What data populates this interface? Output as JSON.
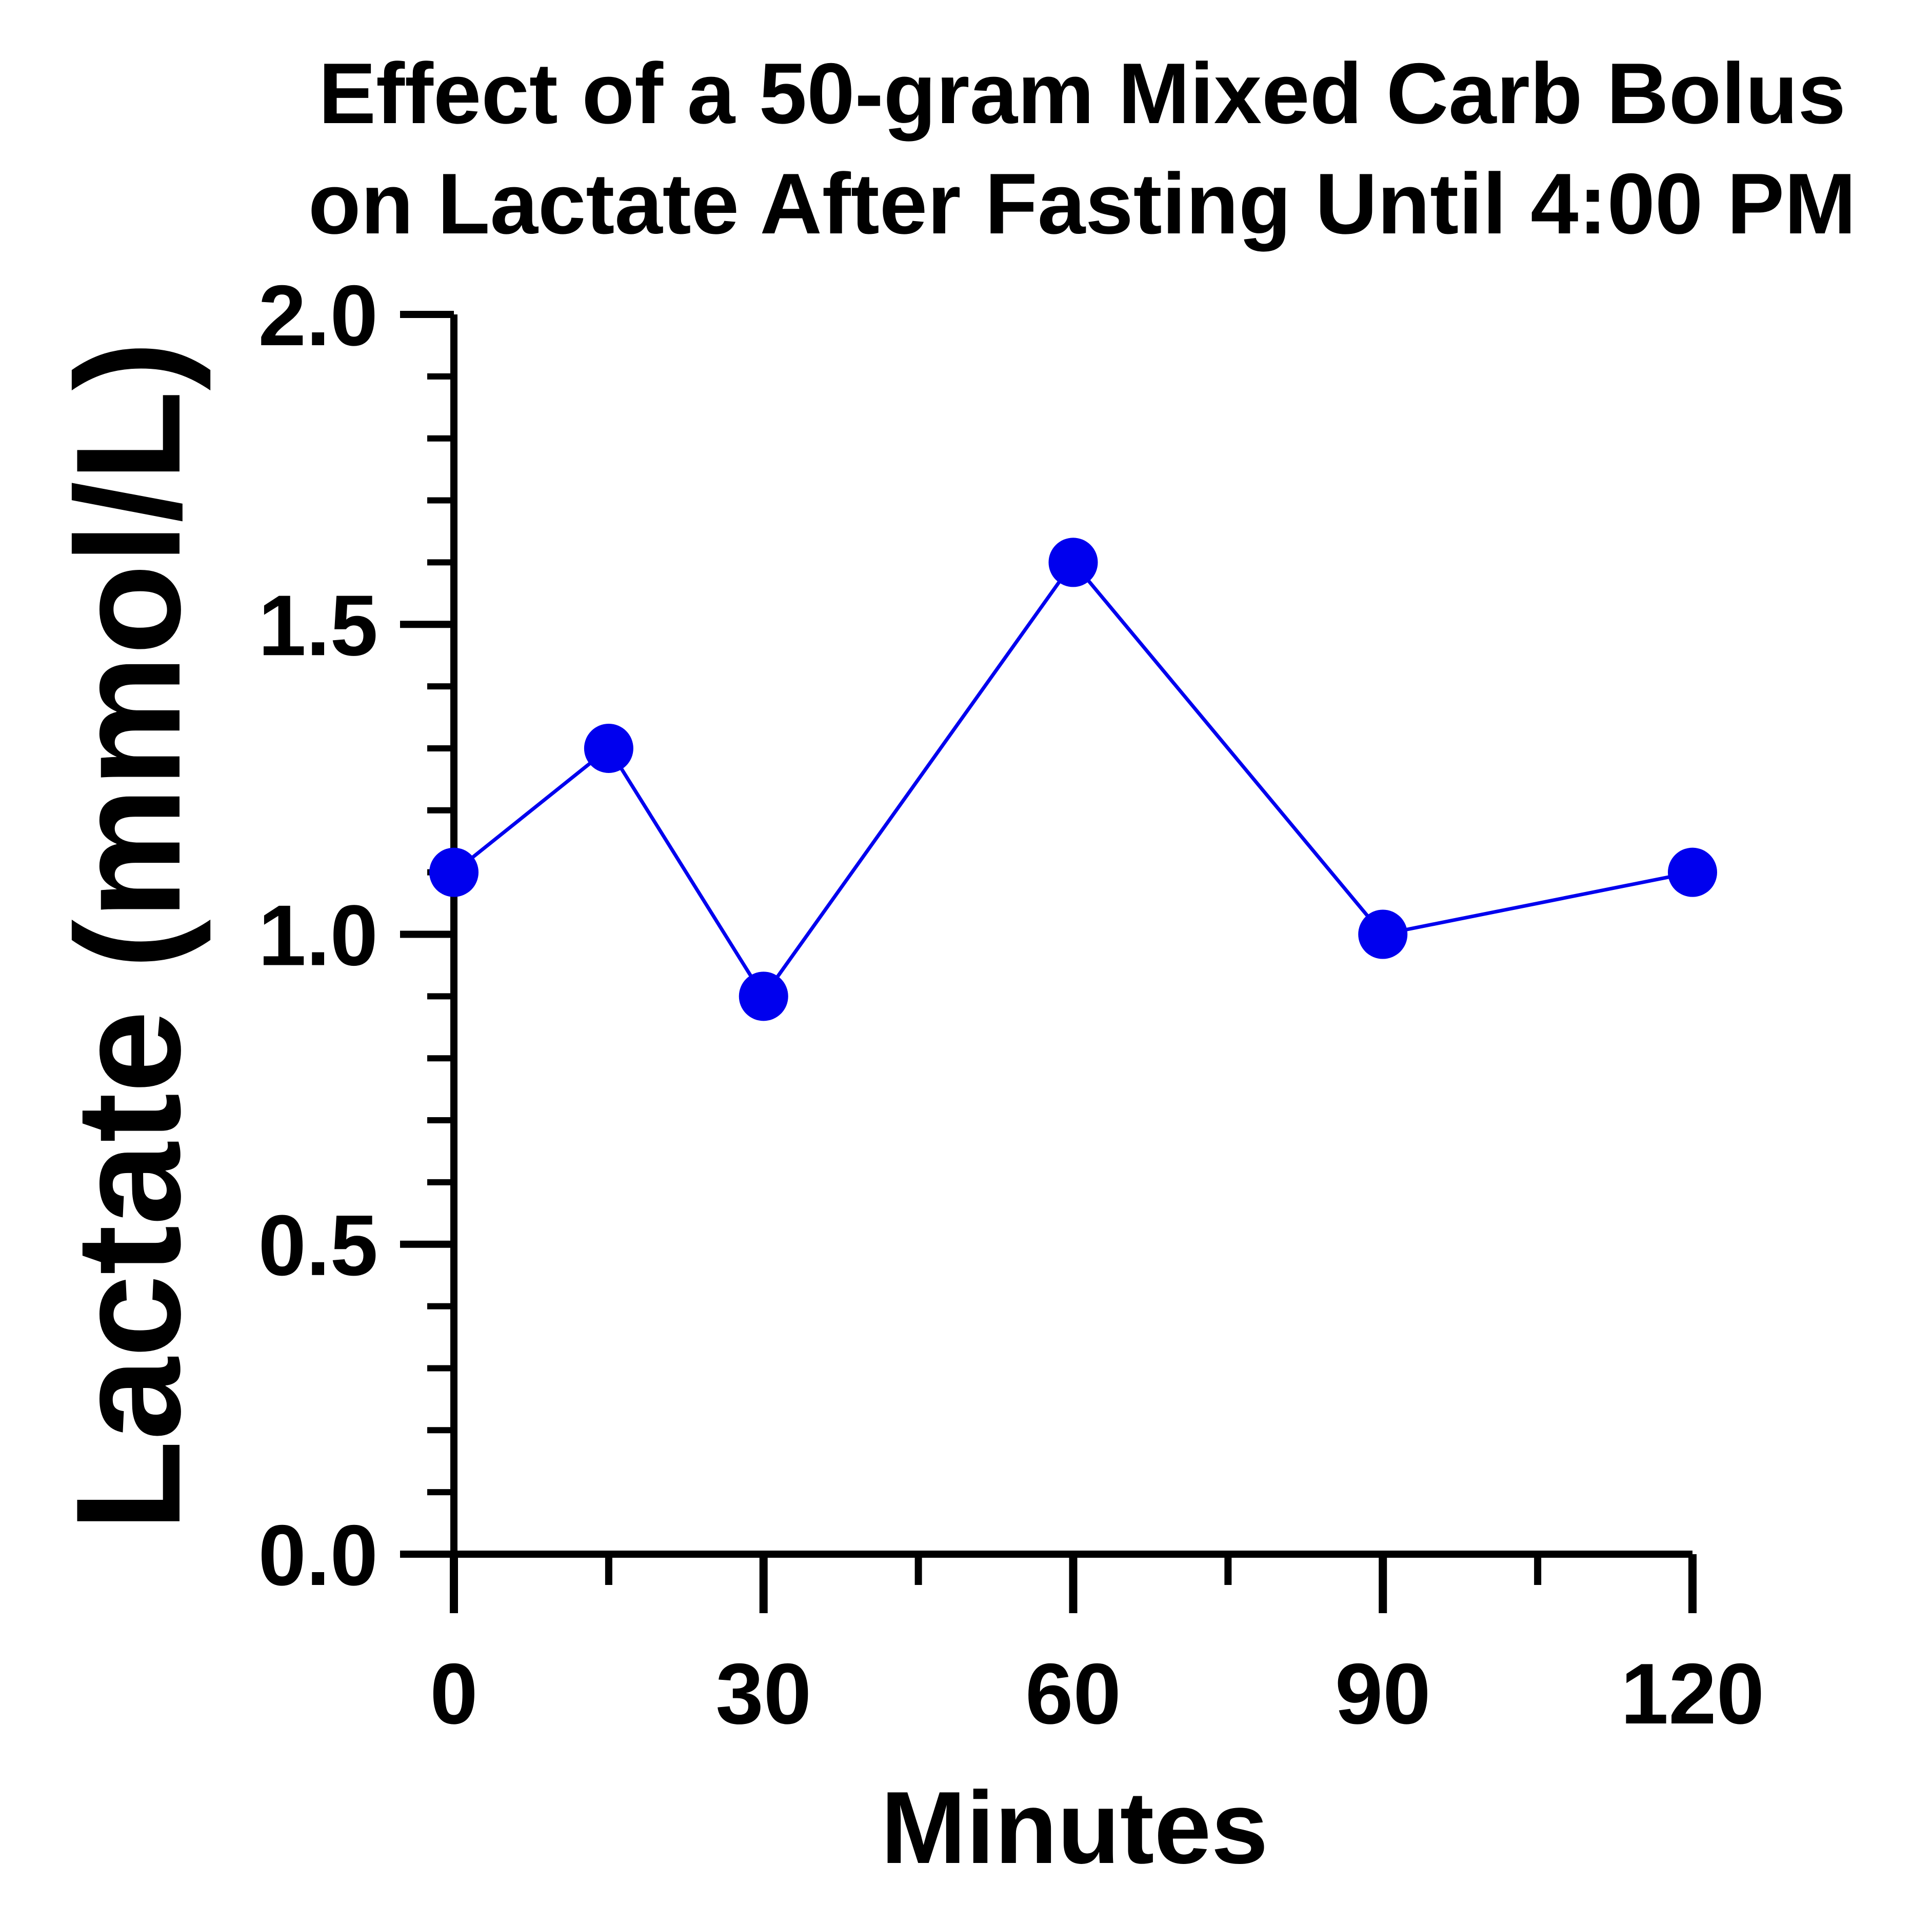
{
  "chart_data": {
    "type": "line",
    "title_lines": [
      "Effect of a 50-gram Mixed Carb Bolus",
      "on Lactate After Fasting Until 4:00 PM"
    ],
    "xlabel": "Minutes",
    "ylabel": "Lactate (mmol/L)",
    "xlim": [
      0,
      120
    ],
    "ylim": [
      0,
      2.0
    ],
    "x_ticks": [
      0,
      30,
      60,
      90,
      120
    ],
    "x_tick_labels": [
      "0",
      "30",
      "60",
      "90",
      "120"
    ],
    "x_minor_ticks": [
      15,
      45,
      75,
      105
    ],
    "y_ticks": [
      0,
      0.5,
      1.0,
      1.5,
      2.0
    ],
    "y_tick_labels": [
      "0.0",
      "0.5",
      "1.0",
      "1.5",
      "2.0"
    ],
    "y_minor_step": 0.1,
    "grid": false,
    "series": [
      {
        "x": [
          0,
          15,
          30,
          60,
          90,
          120
        ],
        "values": [
          1.1,
          1.3,
          0.9,
          1.6,
          1.0,
          1.1
        ],
        "color": "#0000ee"
      }
    ]
  }
}
